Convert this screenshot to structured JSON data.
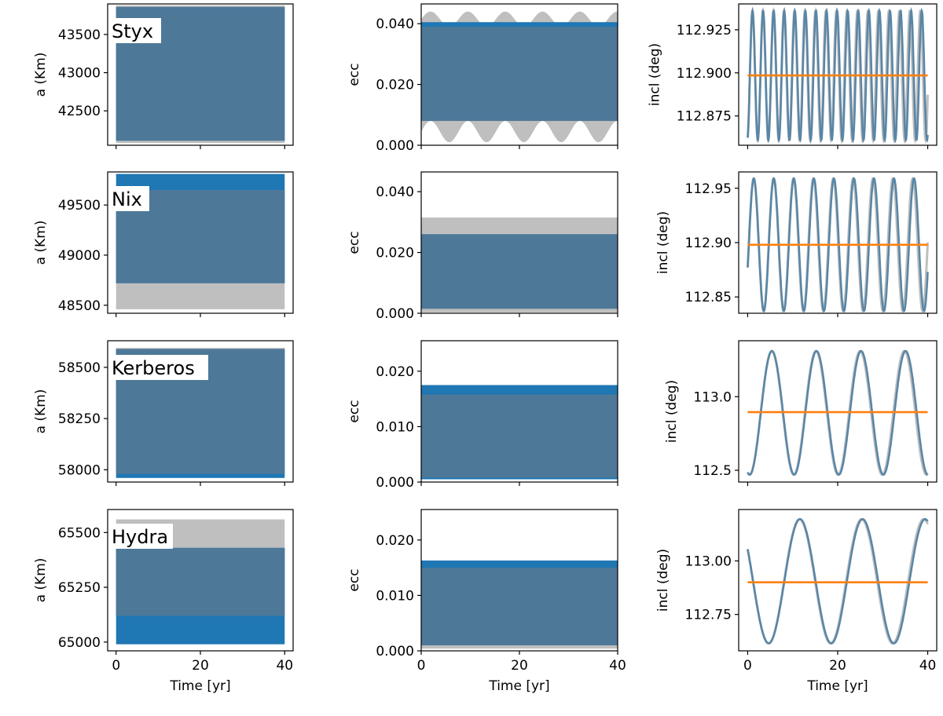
{
  "chart_data": [
    {
      "type": "area",
      "moon": "Styx",
      "ylabel": "a (Km)",
      "ylim": [
        42050,
        43900
      ],
      "yticks": [
        {
          "v": 42500,
          "t": "42500"
        },
        {
          "v": 43000,
          "t": "43000"
        },
        {
          "v": 43500,
          "t": "43500"
        }
      ],
      "xlim": [
        -2,
        42
      ],
      "xticks": [
        0,
        20,
        40
      ],
      "xlabel": "",
      "gray": {
        "kind": "band",
        "lo": 42080,
        "hi": 43880
      },
      "blue": {
        "kind": "band",
        "lo": 42110,
        "hi": 43860
      }
    },
    {
      "type": "area",
      "moon": "",
      "ylabel": "ecc",
      "ylim": [
        0,
        0.0465
      ],
      "yticks": [
        {
          "v": 0,
          "t": "0.000"
        },
        {
          "v": 0.02,
          "t": "0.020"
        },
        {
          "v": 0.04,
          "t": "0.040"
        }
      ],
      "xlim": [
        0,
        40
      ],
      "xticks": [
        0,
        20,
        40
      ],
      "xlabel": "",
      "gray": {
        "kind": "wave",
        "lo": 0.0045,
        "lo_amp": 0.0035,
        "hi": 0.0415,
        "hi_amp": 0.0025,
        "period": 7.6
      },
      "blue": {
        "kind": "band",
        "lo": 0.008,
        "hi": 0.0405
      }
    },
    {
      "type": "line",
      "moon": "",
      "ylabel": "incl (deg)",
      "ylim": [
        112.858,
        112.94
      ],
      "yticks": [
        {
          "v": 112.875,
          "t": "112.875"
        },
        {
          "v": 112.9,
          "t": "112.900"
        },
        {
          "v": 112.925,
          "t": "112.925"
        }
      ],
      "xlim": [
        -2,
        42
      ],
      "xticks": [
        0,
        20,
        40
      ],
      "xlabel": "",
      "osc": {
        "center": 112.8985,
        "amp": 0.0375,
        "period": 2.35,
        "phase": -1.3
      },
      "mean": 112.8985
    },
    {
      "type": "area",
      "moon": "Nix",
      "ylabel": "a (Km)",
      "ylim": [
        48420,
        49830
      ],
      "yticks": [
        {
          "v": 48500,
          "t": "48500"
        },
        {
          "v": 49000,
          "t": "49000"
        },
        {
          "v": 49500,
          "t": "49500"
        }
      ],
      "xlim": [
        -2,
        42
      ],
      "xticks": [
        0,
        20,
        40
      ],
      "xlabel": "",
      "gray": {
        "kind": "band",
        "lo": 48460,
        "hi": 49650
      },
      "blue": {
        "kind": "band",
        "lo": 48720,
        "hi": 49810
      }
    },
    {
      "type": "area",
      "moon": "",
      "ylabel": "ecc",
      "ylim": [
        0,
        0.0465
      ],
      "yticks": [
        {
          "v": 0,
          "t": "0.000"
        },
        {
          "v": 0.02,
          "t": "0.020"
        },
        {
          "v": 0.04,
          "t": "0.040"
        }
      ],
      "xlim": [
        0,
        40
      ],
      "xticks": [
        0,
        20,
        40
      ],
      "xlabel": "",
      "gray": {
        "kind": "band",
        "lo": 0.0003,
        "hi": 0.0315
      },
      "blue": {
        "kind": "band",
        "lo": 0.0015,
        "hi": 0.026
      }
    },
    {
      "type": "line",
      "moon": "",
      "ylabel": "incl (deg)",
      "ylim": [
        112.835,
        112.965
      ],
      "yticks": [
        {
          "v": 112.85,
          "t": "112.85"
        },
        {
          "v": 112.9,
          "t": "112.90"
        },
        {
          "v": 112.95,
          "t": "112.95"
        }
      ],
      "xlim": [
        -2,
        42
      ],
      "xticks": [
        0,
        20,
        40
      ],
      "xlabel": "",
      "osc": {
        "center": 112.898,
        "amp": 0.061,
        "period": 4.45,
        "phase": -0.35
      },
      "mean": 112.898
    },
    {
      "type": "area",
      "moon": "Kerberos",
      "ylabel": "a (Km)",
      "ylim": [
        57940,
        58630
      ],
      "yticks": [
        {
          "v": 58000,
          "t": "58000"
        },
        {
          "v": 58250,
          "t": "58250"
        },
        {
          "v": 58500,
          "t": "58500"
        }
      ],
      "xlim": [
        -2,
        42
      ],
      "xticks": [
        0,
        20,
        40
      ],
      "xlabel": "",
      "gray": {
        "kind": "band",
        "lo": 57980,
        "hi": 58595
      },
      "blue": {
        "kind": "band",
        "lo": 57960,
        "hi": 58590
      }
    },
    {
      "type": "area",
      "moon": "",
      "ylabel": "ecc",
      "ylim": [
        0,
        0.0255
      ],
      "yticks": [
        {
          "v": 0,
          "t": "0.000"
        },
        {
          "v": 0.01,
          "t": "0.010"
        },
        {
          "v": 0.02,
          "t": "0.020"
        }
      ],
      "xlim": [
        0,
        40
      ],
      "xticks": [
        0,
        20,
        40
      ],
      "xlabel": "",
      "gray": {
        "kind": "band",
        "lo": 0.0008,
        "hi": 0.0158
      },
      "blue": {
        "kind": "band",
        "lo": 0.0005,
        "hi": 0.0175
      }
    },
    {
      "type": "line",
      "moon": "",
      "ylabel": "incl (deg)",
      "ylim": [
        112.42,
        113.38
      ],
      "yticks": [
        {
          "v": 112.5,
          "t": "112.5"
        },
        {
          "v": 113.0,
          "t": "113.0"
        }
      ],
      "xlim": [
        -2,
        42
      ],
      "xticks": [
        0,
        20,
        40
      ],
      "xlabel": "",
      "osc": {
        "center": 112.89,
        "amp": 0.42,
        "period": 9.9,
        "phase": -1.85
      },
      "mean": 112.895
    },
    {
      "type": "area",
      "moon": "Hydra",
      "ylabel": "a (Km)",
      "ylim": [
        64960,
        65605
      ],
      "yticks": [
        {
          "v": 65000,
          "t": "65000"
        },
        {
          "v": 65250,
          "t": "65250"
        },
        {
          "v": 65500,
          "t": "65500"
        }
      ],
      "xlim": [
        -2,
        42
      ],
      "xticks": [
        0,
        20,
        40
      ],
      "xlabel": "Time [yr]",
      "gray": {
        "kind": "band",
        "lo": 65120,
        "hi": 65560
      },
      "blue": {
        "kind": "band",
        "lo": 64990,
        "hi": 65430
      }
    },
    {
      "type": "area",
      "moon": "",
      "ylabel": "ecc",
      "ylim": [
        0,
        0.0255
      ],
      "yticks": [
        {
          "v": 0,
          "t": "0.000"
        },
        {
          "v": 0.01,
          "t": "0.010"
        },
        {
          "v": 0.02,
          "t": "0.020"
        }
      ],
      "xlim": [
        0,
        40
      ],
      "xticks": [
        0,
        20,
        40
      ],
      "xlabel": "Time [yr]",
      "gray": {
        "kind": "band",
        "lo": 0.0004,
        "hi": 0.015
      },
      "blue": {
        "kind": "band",
        "lo": 0.001,
        "hi": 0.0163
      }
    },
    {
      "type": "line",
      "moon": "",
      "ylabel": "incl (deg)",
      "ylim": [
        112.58,
        113.24
      ],
      "yticks": [
        {
          "v": 112.75,
          "t": "112.75"
        },
        {
          "v": 113.0,
          "t": "113.00"
        }
      ],
      "xlim": [
        -2,
        42
      ],
      "xticks": [
        0,
        20,
        40
      ],
      "xlabel": "Time [yr]",
      "osc": {
        "center": 112.905,
        "amp": 0.29,
        "period": 13.9,
        "phase": 2.6
      },
      "mean": 112.9
    }
  ],
  "colors": {
    "gray": "#bfbfbf",
    "blue": "#1f77b4",
    "overlap": "#4e7898",
    "orange": "#ff7f0e",
    "line": "#5a86a6"
  }
}
